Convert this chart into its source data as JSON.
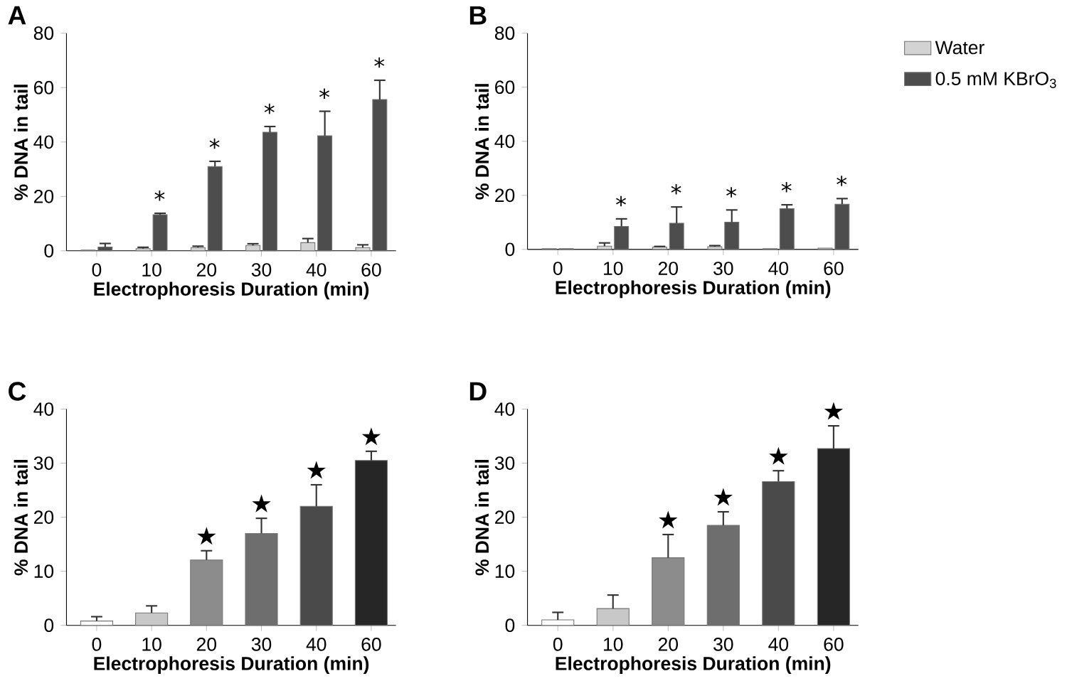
{
  "chart_data": [
    {
      "type": "bar",
      "title": "A",
      "xlabel": "Electrophoresis Duration (min)",
      "ylabel": "% DNA in tail",
      "categories": [
        "0",
        "10",
        "20",
        "30",
        "40",
        "60"
      ],
      "ylim": [
        0,
        80
      ],
      "yticks": [
        0,
        20,
        40,
        60,
        80
      ],
      "series": [
        {
          "color": "#d3d3d3",
          "values": [
            0.3,
            0.8,
            1.2,
            2.0,
            3.0,
            1.2
          ],
          "errors": [
            null,
            0.5,
            0.5,
            0.6,
            1.5,
            1.0
          ]
        },
        {
          "color": "#4d4d4d",
          "values": [
            1.4,
            13.3,
            31,
            43.6,
            42.3,
            55.6
          ],
          "errors": [
            1.3,
            0.5,
            1.9,
            2.1,
            9,
            7.1
          ]
        }
      ],
      "annotations": [
        "*",
        "*",
        "*",
        "*",
        "*"
      ]
    },
    {
      "type": "bar",
      "title": "B",
      "xlabel": "Electrophoresis Duration (min)",
      "ylabel": "% DNA in tail",
      "categories": [
        "0",
        "10",
        "20",
        "30",
        "40",
        "60"
      ],
      "ylim": [
        0,
        80
      ],
      "yticks": [
        0,
        20,
        40,
        60,
        80
      ],
      "legend": "right",
      "series": [
        {
          "name": "Water",
          "color": "#d3d3d3",
          "values": [
            0.3,
            1.2,
            0.9,
            1.0,
            0.3,
            0.5
          ],
          "errors": [
            null,
            1.2,
            0.2,
            0.4,
            null,
            null
          ]
        },
        {
          "name": "0.5 mM KBrO$_{3}$",
          "color": "#4d4d4d",
          "values": [
            0.3,
            8.5,
            9.7,
            10.1,
            15.1,
            16.7
          ],
          "errors": [
            null,
            2.8,
            6,
            4.5,
            1.4,
            2.1
          ]
        }
      ],
      "annotations": [
        "*",
        "*",
        "*",
        "*",
        "*"
      ]
    },
    {
      "type": "bar",
      "title": "C",
      "xlabel": "Electrophoresis Duration (min)",
      "ylabel": "% DNA in tail",
      "categories": [
        "0",
        "10",
        "20",
        "30",
        "40",
        "60"
      ],
      "ylim": [
        0,
        40
      ],
      "yticks": [
        0,
        10,
        20,
        30,
        40
      ],
      "values": [
        0.8,
        2.3,
        12.1,
        17,
        22,
        30.5
      ],
      "errors": [
        0.8,
        1.3,
        1.7,
        2.8,
        4,
        1.7
      ],
      "colors": [
        "#ffffff",
        "#c8c8c8",
        "#8c8c8c",
        "#6e6e6e",
        "#4a4a4a",
        "#262626"
      ],
      "annotations": [
        "★",
        "★",
        "★",
        "★"
      ]
    },
    {
      "type": "bar",
      "title": "D",
      "xlabel": "Electrophoresis Duration (min)",
      "ylabel": "% DNA in tail",
      "categories": [
        "0",
        "10",
        "20",
        "30",
        "40",
        "60"
      ],
      "ylim": [
        0,
        40
      ],
      "yticks": [
        0,
        10,
        20,
        30,
        40
      ],
      "values": [
        1.0,
        3.1,
        12.5,
        18.5,
        26.6,
        32.7
      ],
      "errors": [
        1.4,
        2.5,
        4.3,
        2.5,
        2,
        4.2
      ],
      "colors": [
        "#ffffff",
        "#c8c8c8",
        "#8c8c8c",
        "#6e6e6e",
        "#4a4a4a",
        "#262626"
      ],
      "annotations": [
        "★",
        "★",
        "★",
        "★"
      ]
    }
  ]
}
